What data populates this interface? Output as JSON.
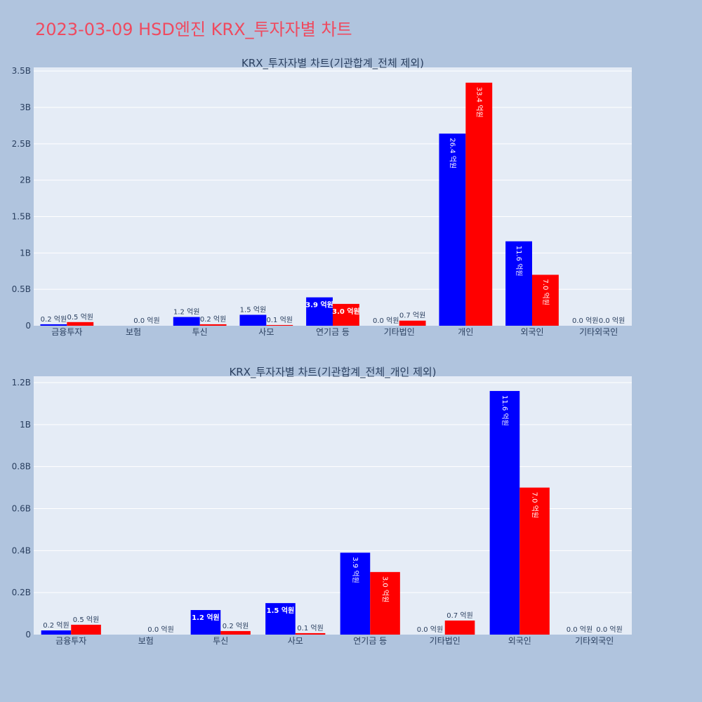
{
  "title": "2023-03-09 HSD엔진 KRX_투자자별 차트",
  "colors": {
    "buy": "#0000ff",
    "sell": "#ff0000",
    "plot_bg": "#e5ecf6",
    "page_bg": "#b0c4de",
    "title": "#ef4a5f"
  },
  "chart_data": [
    {
      "type": "bar",
      "title": "KRX_투자자별 차트(기관합계_전체 제외)",
      "categories": [
        "금융투자",
        "보험",
        "투신",
        "사모",
        "연기금 등",
        "기타법인",
        "개인",
        "외국인",
        "기타외국인"
      ],
      "series": [
        {
          "values": [
            0.02,
            0.0,
            0.12,
            0.15,
            0.39,
            0.0,
            2.64,
            1.16,
            0.0
          ],
          "labels": [
            "0.2 억원",
            "",
            "1.2 억원",
            "1.5 억원",
            "3.9 억원",
            "0.0 억원",
            "26.4 억원",
            "11.6 억원",
            "0.0 억원"
          ]
        },
        {
          "values": [
            0.05,
            0.0,
            0.02,
            0.01,
            0.3,
            0.07,
            3.34,
            0.7,
            0.0
          ],
          "labels": [
            "0.5 억원",
            "0.0 억원",
            "0.2 억원",
            "0.1 억원",
            "3.0 억원",
            "0.7 억원",
            "33.4 억원",
            "7.0 억원",
            "0.0 억원"
          ]
        }
      ],
      "ylim": [
        0,
        3.55
      ],
      "yticks": [
        0,
        0.5,
        1,
        1.5,
        2,
        2.5,
        3,
        3.5
      ],
      "ytick_labels": [
        "0",
        "0.5B",
        "1B",
        "1.5B",
        "2B",
        "2.5B",
        "3B",
        "3.5B"
      ],
      "grid": true
    },
    {
      "type": "bar",
      "title": "KRX_투자자별 차트(기관합계_전체_개인 제외)",
      "categories": [
        "금융투자",
        "보험",
        "투신",
        "사모",
        "연기금 등",
        "기타법인",
        "외국인",
        "기타외국인"
      ],
      "series": [
        {
          "values": [
            0.02,
            0.0,
            0.117,
            0.15,
            0.39,
            0.0,
            1.16,
            0.0
          ],
          "labels": [
            "0.2 억원",
            "",
            "1.2 억원",
            "1.5 억원",
            "3.9 억원",
            "0.0 억원",
            "11.6 억원",
            "0.0 억원"
          ]
        },
        {
          "values": [
            0.047,
            0.0,
            0.017,
            0.007,
            0.298,
            0.067,
            0.7,
            0.0
          ],
          "labels": [
            "0.5 억원",
            "0.0 억원",
            "0.2 억원",
            "0.1 억원",
            "3.0 억원",
            "0.7 억원",
            "7.0 억원",
            "0.0 억원"
          ]
        }
      ],
      "ylim": [
        0,
        1.23
      ],
      "yticks": [
        0,
        0.2,
        0.4,
        0.6,
        0.8,
        1,
        1.2
      ],
      "ytick_labels": [
        "0",
        "0.2B",
        "0.4B",
        "0.6B",
        "0.8B",
        "1B",
        "1.2B"
      ],
      "grid": true
    }
  ]
}
